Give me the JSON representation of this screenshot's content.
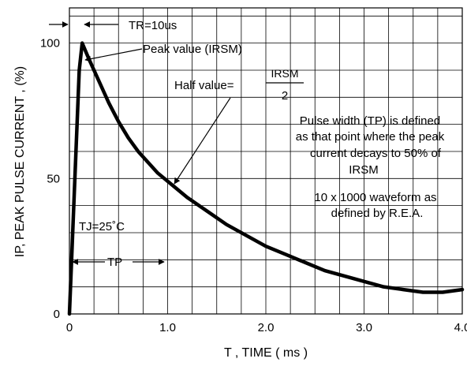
{
  "chart_data": {
    "type": "line",
    "title": "",
    "xlabel": "T , TIME  ( ms )",
    "ylabel": "IP, PEAK  PULSE  CURRENT , (%)",
    "xlim": [
      0,
      4.0
    ],
    "ylim": [
      0,
      113
    ],
    "x_ticks": [
      "0",
      "1.0",
      "2.0",
      "3.0",
      "4.0"
    ],
    "y_ticks": [
      "0",
      "50",
      "100"
    ],
    "grid": true,
    "series": [
      {
        "values": [
          [
            0.0,
            0
          ],
          [
            0.01,
            9
          ],
          [
            0.05,
            45
          ],
          [
            0.1,
            90
          ],
          [
            0.13,
            100
          ],
          [
            0.2,
            94
          ],
          [
            0.3,
            86
          ],
          [
            0.4,
            78
          ],
          [
            0.5,
            71
          ],
          [
            0.6,
            65
          ],
          [
            0.7,
            60
          ],
          [
            0.8,
            56
          ],
          [
            0.9,
            52
          ],
          [
            1.0,
            49
          ],
          [
            1.2,
            43
          ],
          [
            1.4,
            38
          ],
          [
            1.6,
            33
          ],
          [
            1.8,
            29
          ],
          [
            2.0,
            25
          ],
          [
            2.2,
            22
          ],
          [
            2.4,
            19
          ],
          [
            2.6,
            16
          ],
          [
            2.8,
            14
          ],
          [
            3.0,
            12
          ],
          [
            3.2,
            10
          ],
          [
            3.4,
            9
          ],
          [
            3.6,
            8
          ],
          [
            3.8,
            8
          ],
          [
            4.0,
            9
          ]
        ]
      }
    ],
    "annotations": {
      "tr": "TR=10us",
      "peak": "Peak value (IRSM)",
      "half_prefix": "Half value=",
      "half_num": "IRSM",
      "half_den": "2",
      "tj": "TJ=25˚C",
      "tp": "TP",
      "pw_lines": [
        "Pulse width (TP) is defined",
        "as that point where the peak",
        "current decays to 50% of",
        "IRSM"
      ],
      "wave_lines": [
        "10 x 1000 waveform as",
        "defined by R.E.A."
      ]
    }
  }
}
